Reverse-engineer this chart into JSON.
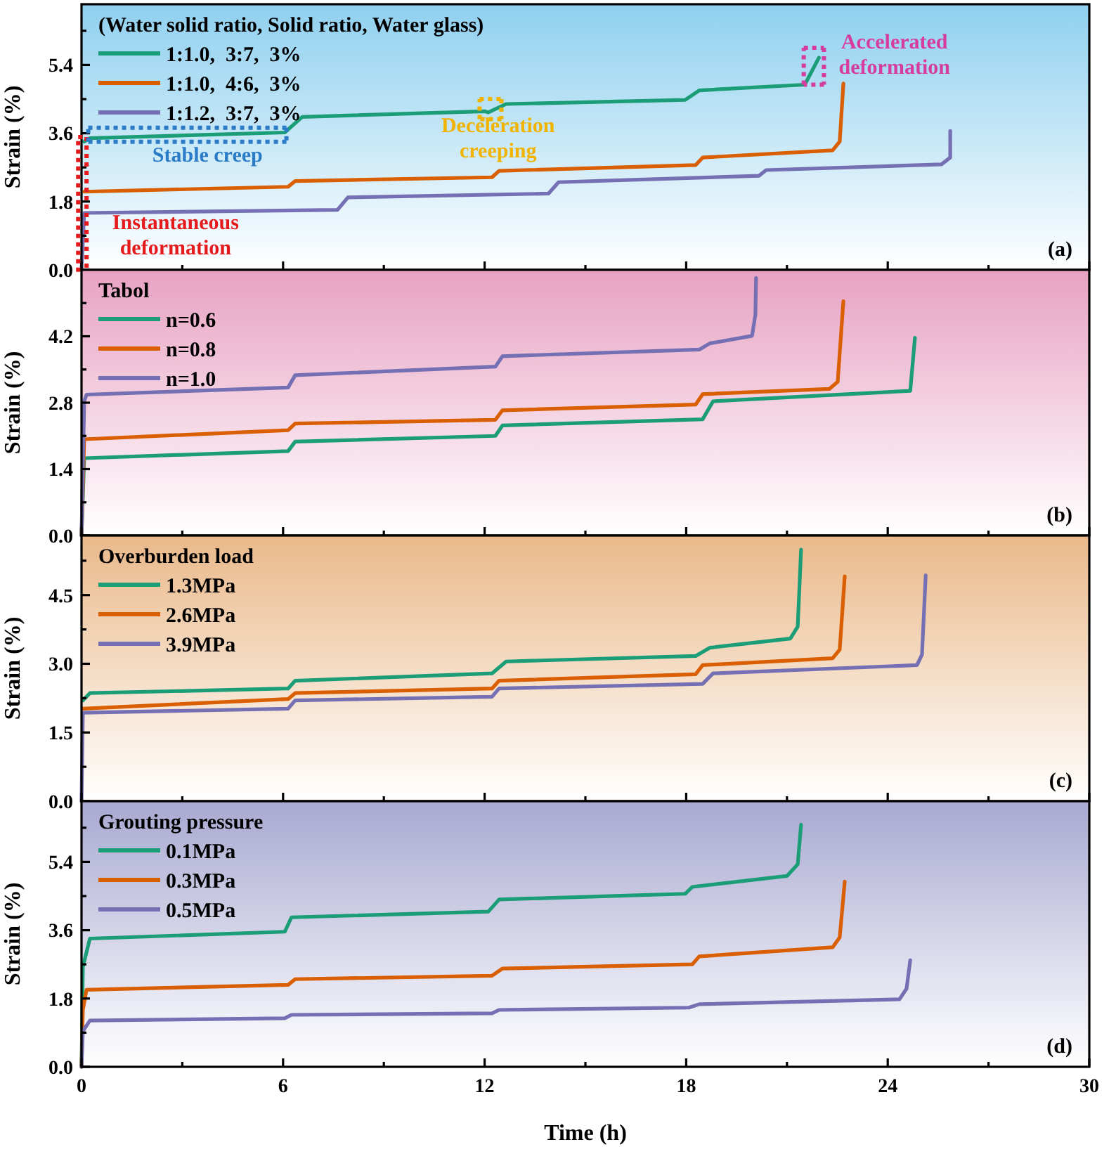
{
  "chart_data": [
    {
      "type": "line",
      "legend_title": "(Water solid ratio, Solid ratio, Water glass)",
      "ylabel": "Strain (%)",
      "xlim": [
        0,
        30
      ],
      "xticks": [
        0,
        {
          "value": 3,
          "label": null
        },
        6,
        {
          "value": 9,
          "label": null
        },
        12,
        {
          "value": 15,
          "label": null
        },
        18,
        {
          "value": 21,
          "label": null
        },
        24,
        {
          "value": 27,
          "label": null
        },
        30
      ],
      "ylim": [
        0,
        7
      ],
      "yticks": [
        "0.0",
        {
          "value": 0.9,
          "label": null
        },
        1.8,
        {
          "value": 2.7,
          "label": null
        },
        3.6,
        {
          "value": 4.5,
          "label": null
        },
        5.4,
        {
          "value": 6.3,
          "label": null
        }
      ],
      "tick_labels": "y",
      "legend": "top left",
      "line_style": "solid",
      "series": [
        {
          "name": "1:1.0,  3:7,  3%",
          "color": "#1b9e77",
          "x": [
            0.08,
            0.25,
            6.05,
            6.57,
            12.0,
            12.11,
            12.64,
            17.97,
            18.39,
            21.53,
            21.95
          ],
          "values": [
            3.38,
            3.47,
            3.62,
            4.03,
            4.18,
            4.15,
            4.37,
            4.48,
            4.73,
            4.88,
            5.59
          ]
        },
        {
          "name": "1:1.0,  4:6,  3%",
          "color": "#d95f02",
          "x": [
            0.08,
            6.15,
            6.36,
            12.22,
            12.43,
            18.28,
            18.49,
            22.36,
            22.57,
            22.68
          ],
          "values": [
            2.06,
            2.19,
            2.34,
            2.44,
            2.61,
            2.76,
            2.96,
            3.15,
            3.38,
            4.91
          ]
        },
        {
          "name": "1:1.2,  3:7,  3%",
          "color": "#7570b3",
          "x": [
            0,
            0.08,
            7.62,
            7.93,
            13.9,
            14.2,
            20.17,
            20.38,
            25.6,
            25.86,
            25.86
          ],
          "values": [
            0,
            1.5,
            1.58,
            1.91,
            2.01,
            2.31,
            2.48,
            2.63,
            2.78,
            2.96,
            3.66
          ]
        }
      ],
      "annotations": [
        "Instantaneous deformation",
        {
          "text": "Stable creep",
          "x": 3.15,
          "y": 3.56
        },
        "Deceleration creeping",
        "Accelerated deformation",
        "(a)"
      ]
    },
    {
      "type": "line",
      "legend_title": "Tabol",
      "ylabel": "Strain (%)",
      "xlim": [
        0,
        30
      ],
      "xticks": [
        0,
        {
          "value": 3,
          "label": null
        },
        6,
        {
          "value": 9,
          "label": null
        },
        12,
        {
          "value": 15,
          "label": null
        },
        18,
        {
          "value": 21,
          "label": null
        },
        24,
        {
          "value": 27,
          "label": null
        },
        30
      ],
      "ylim": [
        0,
        5.6
      ],
      "yticks": [
        "0.0",
        {
          "value": 0.7,
          "label": null
        },
        1.4,
        {
          "value": 2.1,
          "label": null
        },
        2.8,
        {
          "value": 3.5,
          "label": null
        },
        4.2,
        {
          "value": 4.9,
          "label": null
        }
      ],
      "tick_labels": "y",
      "legend": "top left",
      "line_style": "solid",
      "series": [
        {
          "name": "n=0.6",
          "color": "#1b9e77",
          "x": [
            0,
            0.08,
            6.15,
            6.36,
            12.32,
            12.53,
            18.49,
            18.8,
            24.67,
            24.81
          ],
          "values": [
            0,
            1.63,
            1.78,
            1.98,
            2.1,
            2.32,
            2.45,
            2.83,
            3.05,
            4.17
          ]
        },
        {
          "name": "n=0.8",
          "color": "#d95f02",
          "x": [
            0,
            0.08,
            6.15,
            6.36,
            12.32,
            12.53,
            18.28,
            18.49,
            22.26,
            22.51,
            22.68
          ],
          "values": [
            0,
            2.03,
            2.22,
            2.36,
            2.44,
            2.64,
            2.76,
            2.98,
            3.09,
            3.24,
            4.94
          ]
        },
        {
          "name": "n=1.0",
          "color": "#7570b3",
          "x": [
            0,
            0.08,
            0.15,
            6.15,
            6.36,
            12.32,
            12.53,
            18.39,
            18.7,
            19.96,
            20.06,
            20.08
          ],
          "values": [
            0,
            2.83,
            2.97,
            3.12,
            3.38,
            3.56,
            3.78,
            3.92,
            4.05,
            4.21,
            4.65,
            5.43
          ]
        }
      ],
      "annotations": [
        "(b)"
      ]
    },
    {
      "type": "line",
      "legend_title": "Overburden load",
      "ylabel": "Strain (%)",
      "xlim": [
        0,
        30
      ],
      "xticks": [
        0,
        {
          "value": 3,
          "label": null
        },
        6,
        {
          "value": 9,
          "label": null
        },
        12,
        {
          "value": 15,
          "label": null
        },
        18,
        {
          "value": 21,
          "label": null
        },
        24,
        {
          "value": 27,
          "label": null
        },
        30
      ],
      "ylim": [
        0,
        5.8
      ],
      "yticks": [
        "0.0",
        {
          "value": 0.75,
          "label": null
        },
        1.5,
        {
          "value": 2.25,
          "label": null
        },
        "3.0",
        {
          "value": 3.75,
          "label": null
        },
        4.5,
        {
          "value": 5.25,
          "label": null
        }
      ],
      "tick_labels": "y",
      "legend": "top left",
      "line_style": "solid",
      "series": [
        {
          "name": "1.3MPa",
          "color": "#1b9e77",
          "x": [
            0.04,
            0.25,
            6.15,
            6.36,
            12.22,
            12.64,
            18.28,
            18.7,
            21.1,
            21.32,
            21.42
          ],
          "values": [
            2.2,
            2.36,
            2.46,
            2.63,
            2.79,
            3.05,
            3.17,
            3.35,
            3.55,
            3.81,
            5.49
          ]
        },
        {
          "name": "2.6MPa",
          "color": "#d95f02",
          "x": [
            0.04,
            6.15,
            6.36,
            12.22,
            12.43,
            18.28,
            18.49,
            22.36,
            22.57,
            22.72
          ],
          "values": [
            2.02,
            2.23,
            2.36,
            2.46,
            2.63,
            2.77,
            2.97,
            3.12,
            3.31,
            4.91
          ]
        },
        {
          "name": "3.9MPa",
          "color": "#7570b3",
          "x": [
            0,
            0.04,
            6.15,
            6.36,
            12.22,
            12.43,
            18.49,
            18.8,
            24.87,
            25.02,
            25.13
          ],
          "values": [
            0,
            1.93,
            2.02,
            2.2,
            2.28,
            2.46,
            2.56,
            2.79,
            2.97,
            3.2,
            4.93
          ]
        }
      ],
      "annotations": [
        "(c)"
      ]
    },
    {
      "type": "line",
      "legend_title": "Grouting pressure",
      "ylabel": "Strain (%)",
      "xlabel": "Time (h)",
      "xlim": [
        0,
        30
      ],
      "xticks": [
        0,
        {
          "value": 3,
          "label": null
        },
        6,
        {
          "value": 9,
          "label": null
        },
        12,
        {
          "value": 15,
          "label": null
        },
        18,
        {
          "value": 21,
          "label": null
        },
        24,
        {
          "value": 27,
          "label": null
        },
        30
      ],
      "ylim": [
        0,
        7
      ],
      "yticks": [
        "0.0",
        {
          "value": 0.9,
          "label": null
        },
        1.8,
        {
          "value": 2.7,
          "label": null
        },
        3.6,
        {
          "value": 4.5,
          "label": null
        },
        5.4,
        {
          "value": 6.3,
          "label": null
        }
      ],
      "legend": "top left",
      "line_style": "solid",
      "series": [
        {
          "name": "0.1MPa",
          "color": "#1b9e77",
          "x": [
            0,
            0.04,
            0.25,
            6.05,
            6.25,
            12.11,
            12.43,
            17.97,
            18.18,
            21.0,
            21.32,
            21.42
          ],
          "values": [
            0,
            2.63,
            3.38,
            3.56,
            3.94,
            4.09,
            4.41,
            4.56,
            4.74,
            5.03,
            5.34,
            6.38
          ]
        },
        {
          "name": "0.3MPa",
          "color": "#d95f02",
          "x": [
            0,
            0.04,
            0.15,
            6.15,
            6.36,
            12.22,
            12.53,
            18.18,
            18.39,
            22.36,
            22.57,
            22.72
          ],
          "values": [
            0,
            1.5,
            2.03,
            2.16,
            2.31,
            2.4,
            2.59,
            2.7,
            2.91,
            3.15,
            3.41,
            4.88
          ]
        },
        {
          "name": "0.5MPa",
          "color": "#7570b3",
          "x": [
            0,
            0.04,
            0.25,
            6.05,
            6.25,
            12.22,
            12.43,
            18.08,
            18.39,
            24.35,
            24.56,
            24.67
          ],
          "values": [
            0,
            0.94,
            1.22,
            1.28,
            1.37,
            1.41,
            1.5,
            1.56,
            1.65,
            1.78,
            2.06,
            2.81
          ]
        }
      ],
      "annotations": [
        "(d)"
      ]
    }
  ]
}
